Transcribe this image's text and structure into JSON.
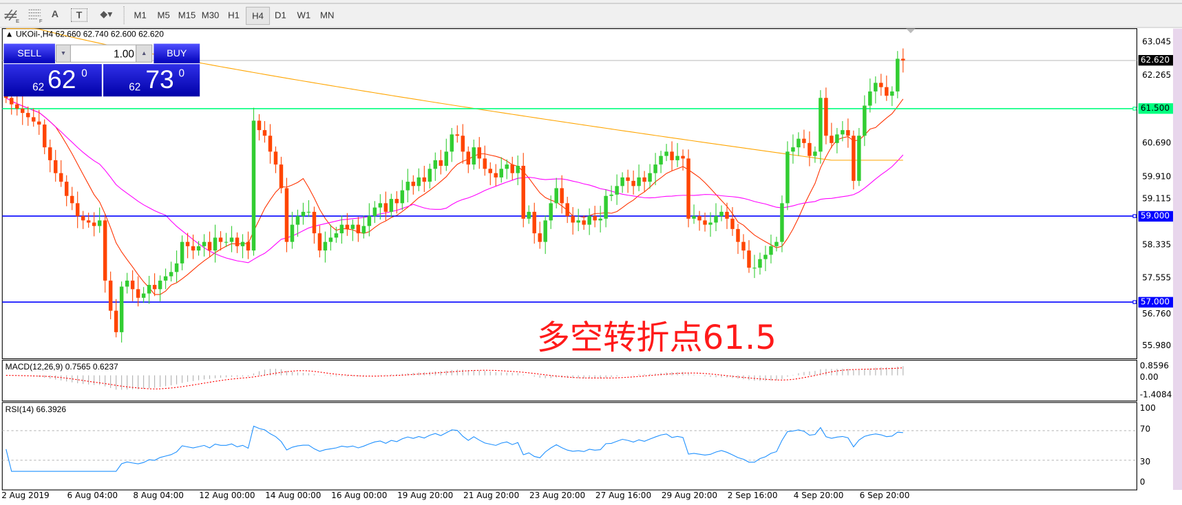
{
  "toolbar": {
    "icons": [
      "line-studies-icon",
      "fibonacci-icon",
      "text-icon",
      "text-label-icon",
      "arrows-icon"
    ],
    "text_icon": "A",
    "label_icon": "T",
    "fib_letter": "F",
    "ls_letter": "E",
    "timeframes": [
      "M1",
      "M5",
      "M15",
      "M30",
      "H1",
      "H4",
      "D1",
      "W1",
      "MN"
    ],
    "selected": "H4"
  },
  "chart": {
    "header": "UKOil-,H4  62.660 62.740 62.600 62.620",
    "annotation": "多空转折点61.5",
    "colors": {
      "bull": "#32cd32",
      "bear": "#ff4500",
      "ma_fast": "#ff3300",
      "ma_mid": "#ff00ff",
      "ma_slow": "#ffa500",
      "line_61_5": "#00ff7f",
      "line_59": "#0000ff",
      "line_57": "#0000ff",
      "rsi": "#1e90ff",
      "macd_signal": "#ff0000",
      "macd_hist": "#b0b0b0"
    }
  },
  "trade": {
    "sell_label": "SELL",
    "buy_label": "BUY",
    "volume": "1.00",
    "sell_small": "62",
    "sell_big": "62",
    "sell_sup": "0",
    "buy_small": "62",
    "buy_big": "73",
    "buy_sup": "0"
  },
  "price_axis": {
    "ticks": [
      "63.045",
      "62.265",
      "60.690",
      "59.910",
      "59.115",
      "58.335",
      "57.555",
      "56.760",
      "55.980"
    ],
    "current": "62.620",
    "levels": [
      "61.500",
      "59.000",
      "57.000"
    ]
  },
  "macd": {
    "label": "MACD(12,26,9) 0.7565 0.6237",
    "ticks": [
      "0.8596",
      "0.00",
      "-1.4084"
    ]
  },
  "rsi": {
    "label": "RSI(14) 66.3926",
    "ticks": [
      "100",
      "70",
      "30",
      "0"
    ]
  },
  "time_axis": [
    "2 Aug 2019",
    "6 Aug 04:00",
    "8 Aug 04:00",
    "12 Aug 00:00",
    "14 Aug 00:00",
    "16 Aug 00:00",
    "19 Aug 20:00",
    "21 Aug 20:00",
    "23 Aug 20:00",
    "27 Aug 16:00",
    "29 Aug 20:00",
    "2 Sep 16:00",
    "4 Sep 20:00",
    "6 Sep 20:00"
  ],
  "chart_data": {
    "type": "candlestick",
    "symbol": "UKOil-",
    "timeframe": "H4",
    "ylim": [
      55.98,
      63.045
    ],
    "horizontal_lines": [
      61.5,
      59.0,
      57.0
    ],
    "last": {
      "open": 62.66,
      "high": 62.74,
      "low": 62.6,
      "close": 62.62
    },
    "closes": [
      61.75,
      61.6,
      61.5,
      61.4,
      61.3,
      61.2,
      61.13,
      60.6,
      60.3,
      60.0,
      59.8,
      59.47,
      59.3,
      59.0,
      58.9,
      58.85,
      58.77,
      58.9,
      57.5,
      56.8,
      56.3,
      57.36,
      57.5,
      57.3,
      57.1,
      57.2,
      57.4,
      57.3,
      57.5,
      57.6,
      57.7,
      57.9,
      58.4,
      58.3,
      58.2,
      58.3,
      58.4,
      58.2,
      58.5,
      58.4,
      58.4,
      58.5,
      58.3,
      58.4,
      58.2,
      61.22,
      61.0,
      60.87,
      60.5,
      60.2,
      59.65,
      58.4,
      58.8,
      59.0,
      59.1,
      59.1,
      58.6,
      58.2,
      58.4,
      58.5,
      58.6,
      58.8,
      58.7,
      58.8,
      58.6,
      58.77,
      59.0,
      59.2,
      59.3,
      59.1,
      59.4,
      59.3,
      59.6,
      59.8,
      59.7,
      59.9,
      59.8,
      60.1,
      60.3,
      60.17,
      60.5,
      60.9,
      60.87,
      60.5,
      60.2,
      60.6,
      60.34,
      60.1,
      60.0,
      59.9,
      60.1,
      60.2,
      60.0,
      60.17,
      58.94,
      59.1,
      58.6,
      58.4,
      58.9,
      59.3,
      59.65,
      59.3,
      59.0,
      58.85,
      58.9,
      58.8,
      59.0,
      58.9,
      58.94,
      59.47,
      59.5,
      59.7,
      59.9,
      59.82,
      59.7,
      59.9,
      59.8,
      60.0,
      60.2,
      60.4,
      60.5,
      60.3,
      60.4,
      60.34,
      58.94,
      59.0,
      58.9,
      58.8,
      58.85,
      59.0,
      59.1,
      58.94,
      58.7,
      58.4,
      58.2,
      57.8,
      57.8,
      58.0,
      58.1,
      58.3,
      58.4,
      59.3,
      60.5,
      60.6,
      60.8,
      60.7,
      60.4,
      60.5,
      61.75,
      60.87,
      60.7,
      60.9,
      61.0,
      60.87,
      59.82,
      60.87,
      61.57,
      61.9,
      62.1,
      62.0,
      61.8,
      61.9,
      62.66,
      62.62
    ]
  }
}
